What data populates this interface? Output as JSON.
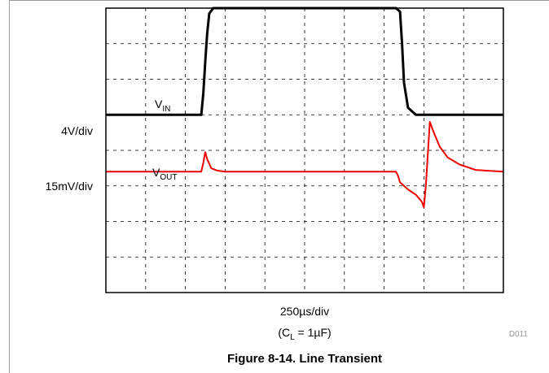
{
  "chart_data": {
    "type": "line",
    "title": "Figure 8-14. Line Transient",
    "xlabel": "250µs/div",
    "condition": {
      "prefix": "(C",
      "sub": "L",
      "suffix": " = 1µF)"
    },
    "figure_code": "D011",
    "divisions": {
      "x": 10,
      "y": 8
    },
    "grid": true,
    "channels": [
      {
        "label": {
          "main": "V",
          "sub": "IN"
        },
        "scale_label": "4V/div",
        "color": "#000000",
        "reference_div": 5,
        "x": [
          0,
          2.4,
          2.45,
          2.5,
          2.55,
          2.6,
          2.7,
          7.3,
          7.4,
          7.45,
          7.5,
          7.6,
          7.8,
          10
        ],
        "y": [
          0,
          0,
          0.6,
          1.5,
          2.3,
          2.85,
          3.0,
          3.0,
          2.9,
          2.0,
          0.9,
          0.2,
          0,
          0
        ]
      },
      {
        "label": {
          "main": "V",
          "sub": "OUT"
        },
        "scale_label": "15mV/div",
        "color": "#ee0000",
        "reference_div": 3.4,
        "x": [
          0,
          2.4,
          2.45,
          2.5,
          2.55,
          2.65,
          2.8,
          3.0,
          7.3,
          7.35,
          7.4,
          7.6,
          7.8,
          7.95,
          8.0,
          8.05,
          8.15,
          8.25,
          8.4,
          8.6,
          8.9,
          9.3,
          10
        ],
        "y": [
          0,
          0,
          0.25,
          0.55,
          0.35,
          0.1,
          0.03,
          0,
          0,
          -0.12,
          -0.3,
          -0.5,
          -0.65,
          -0.85,
          -1.0,
          -0.4,
          1.4,
          1.1,
          0.7,
          0.4,
          0.2,
          0.05,
          0
        ]
      }
    ]
  }
}
